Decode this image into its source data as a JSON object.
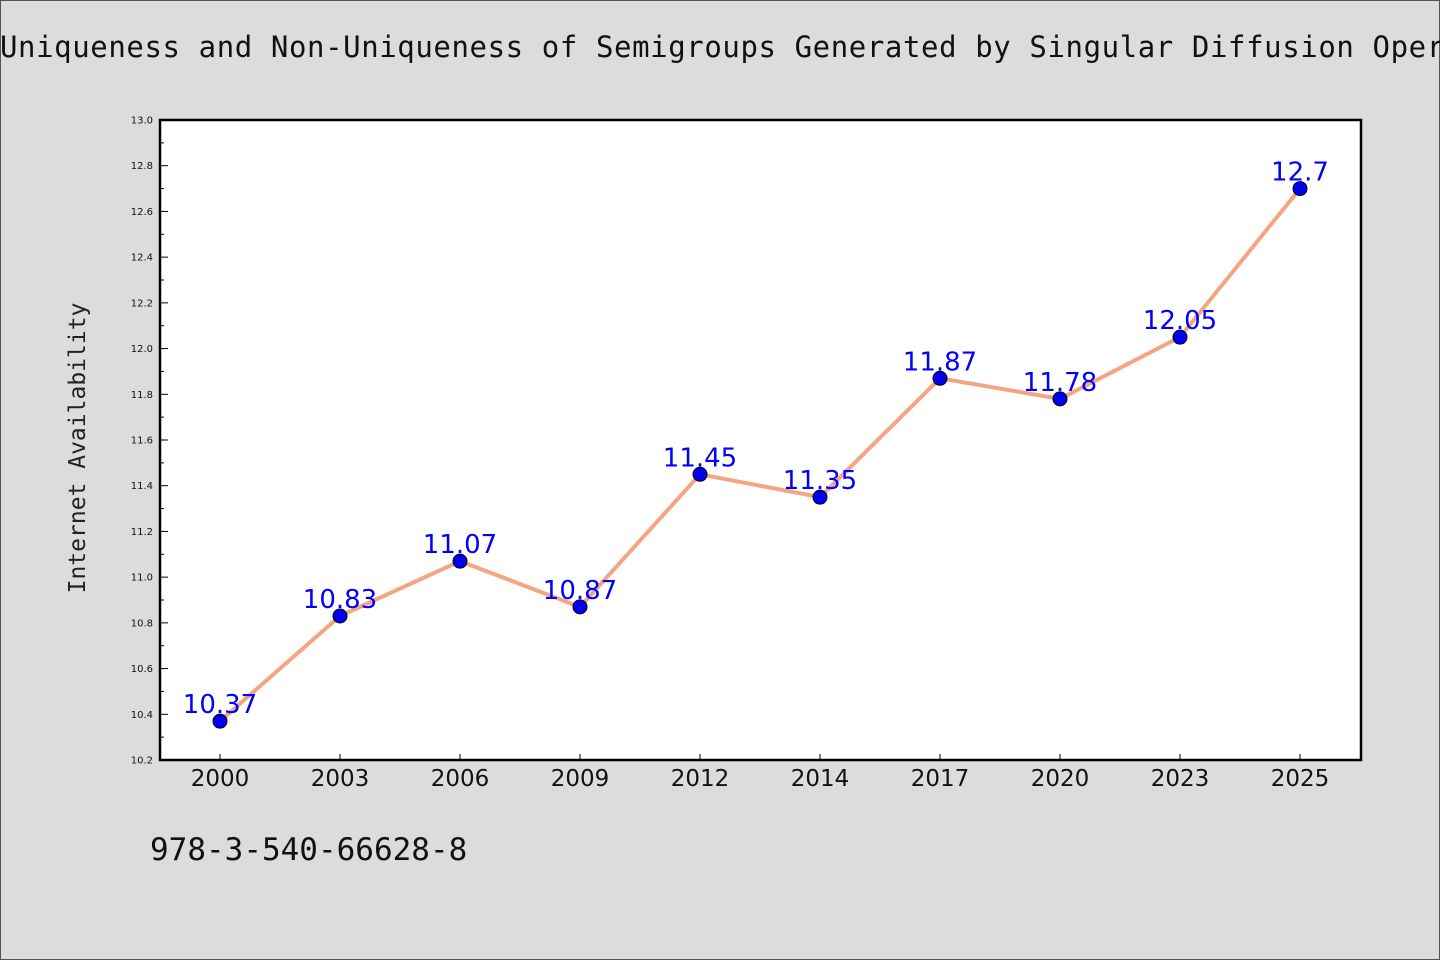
{
  "title": "Uniqueness and Non-Uniqueness of Semigroups Generated by Singular Diffusion Operators",
  "footer_text": "978-3-540-66628-8",
  "colors": {
    "background": "#dcdcdc",
    "plot_background": "#ffffff",
    "line": "#f4a582",
    "marker": "#0000ee",
    "data_label": "#0000ff"
  },
  "chart_data": {
    "type": "line",
    "title": "Uniqueness and Non-Uniqueness of Semigroups Generated by Singular Diffusion Operators",
    "xlabel": "",
    "ylabel": "Internet Availability",
    "categories": [
      "2000",
      "2003",
      "2006",
      "2009",
      "2012",
      "2014",
      "2017",
      "2020",
      "2023",
      "2025"
    ],
    "series": [
      {
        "values": [
          10.37,
          10.83,
          11.07,
          10.87,
          11.45,
          11.35,
          11.87,
          11.78,
          12.05,
          12.7
        ],
        "labels": [
          "10.37",
          "10.83",
          "11.07",
          "10.87",
          "11.45",
          "11.35",
          "11.87",
          "11.78",
          "12.05",
          "12.7"
        ]
      }
    ],
    "ylim": [
      10.2,
      13.0
    ],
    "yticks": [
      "10.2",
      "10.4",
      "10.6",
      "10.8",
      "11.0",
      "11.2",
      "11.4",
      "11.6",
      "11.8",
      "12.0",
      "12.2",
      "12.4",
      "12.6",
      "12.8",
      "13.0"
    ],
    "grid": false,
    "legend": "none"
  }
}
